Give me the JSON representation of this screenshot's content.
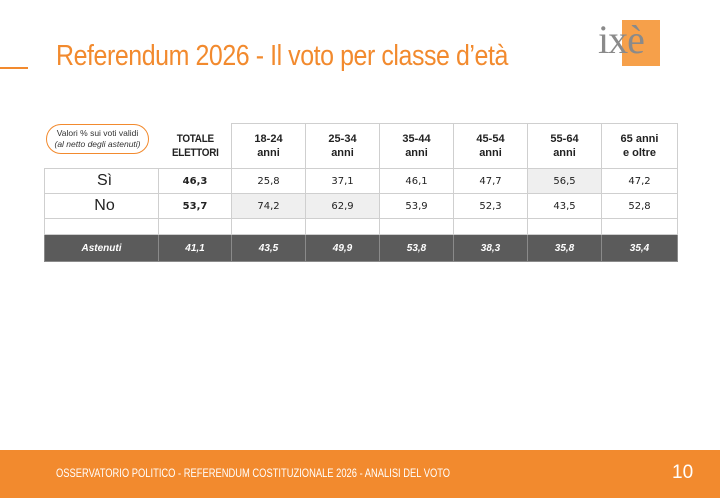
{
  "header": {
    "title": "Referendum 2026 - Il voto per classe d’età",
    "logo_text": "ixè"
  },
  "legend": {
    "line1": "Valori % sui voti validi",
    "line2": "(al netto degli astenuti)"
  },
  "table": {
    "columns": [
      "TOTALE ELETTORI",
      "18-24 anni",
      "25-34 anni",
      "35-44 anni",
      "45-54 anni",
      "55-64 anni",
      "65 anni e oltre"
    ],
    "column_lines": [
      [
        "TOTALE",
        "ELETTORI"
      ],
      [
        "18-24",
        "anni"
      ],
      [
        "25-34",
        "anni"
      ],
      [
        "35-44",
        "anni"
      ],
      [
        "45-54",
        "anni"
      ],
      [
        "55-64",
        "anni"
      ],
      [
        "65 anni",
        "e oltre"
      ]
    ],
    "rows": [
      {
        "label": "Sì",
        "values": [
          "46,3",
          "25,8",
          "37,1",
          "46,1",
          "47,7",
          "56,5",
          "47,2"
        ]
      },
      {
        "label": "No",
        "values": [
          "53,7",
          "74,2",
          "62,9",
          "53,9",
          "52,3",
          "43,5",
          "52,8"
        ]
      }
    ],
    "abstention": {
      "label": "Astenuti",
      "values": [
        "41,1",
        "43,5",
        "49,9",
        "53,8",
        "38,3",
        "35,8",
        "35,4"
      ]
    }
  },
  "footer": {
    "text": "OSSERVATORIO POLITICO - REFERENDUM COSTITUZIONALE 2026 - ANALISI DEL VOTO",
    "page_number": "10"
  },
  "colors": {
    "accent": "#f28a2e",
    "abstention_row": "#5b5b5b",
    "highlight_cell": "#efefef"
  }
}
